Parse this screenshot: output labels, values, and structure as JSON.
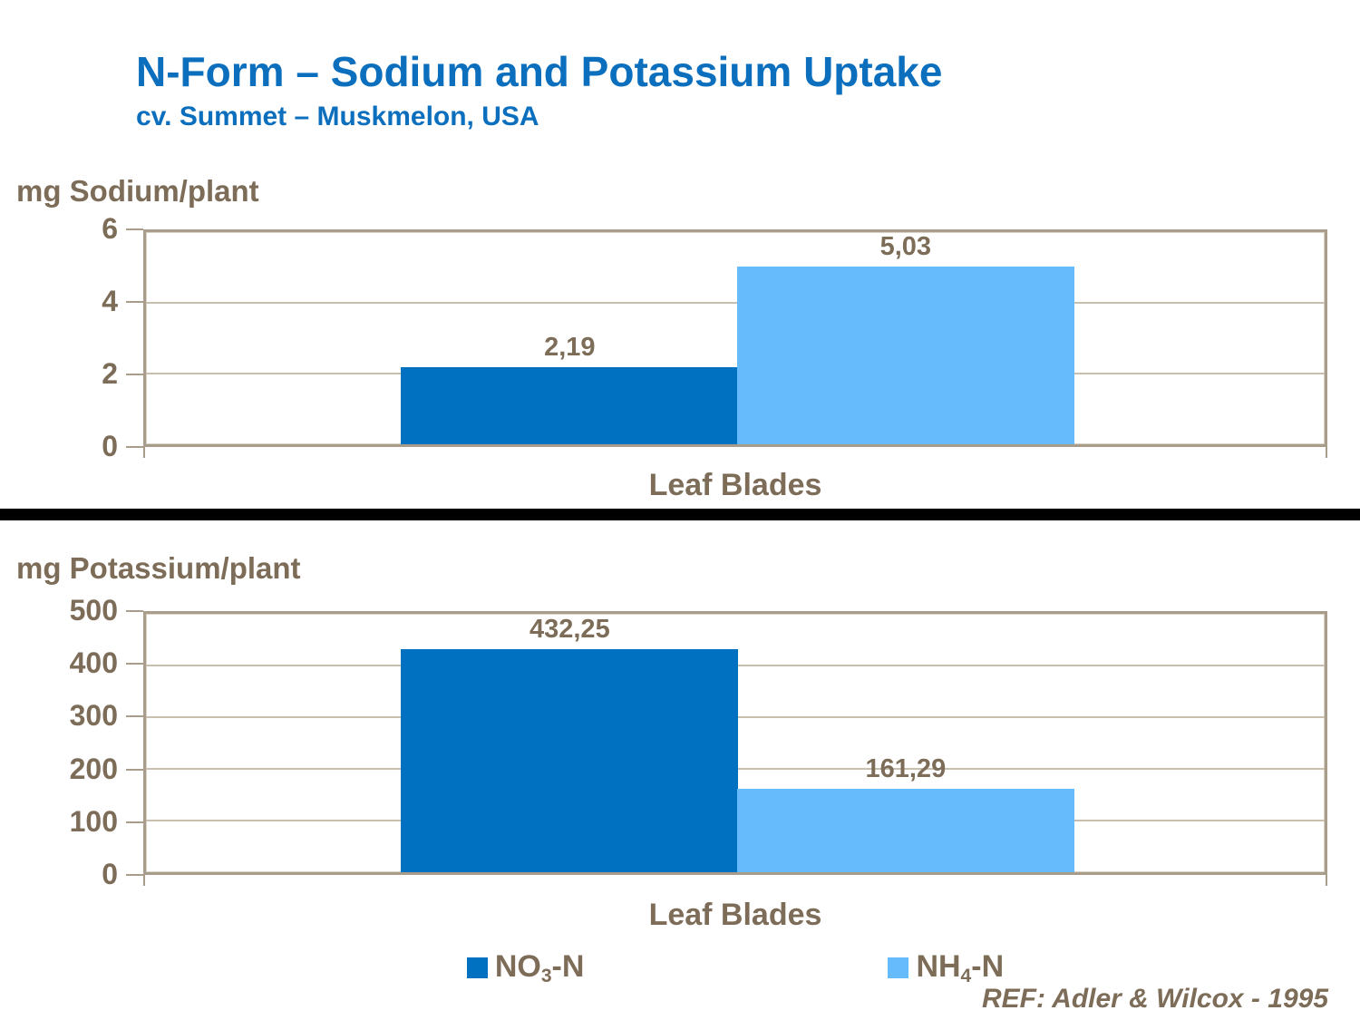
{
  "page": {
    "title": "N-Form – Sodium and Potassium Uptake",
    "subtitle": "cv. Summet – Muskmelon, USA",
    "reference": "REF: Adler & Wilcox - 1995"
  },
  "colors": {
    "title_blue": "#0B6FBE",
    "text_brown": "#7D6D58",
    "no3_bar_blue": "#0070C0",
    "nh4_bar_blue": "#66BBFC",
    "plot_border_tan": "#A89C8A",
    "gridline_tan": "#C9BFAF",
    "divider_black": "#000000"
  },
  "legend": {
    "items": [
      {
        "label_main": "NO",
        "label_sub": "3",
        "label_suffix": "-N",
        "color": "#0070C0"
      },
      {
        "label_main": "NH",
        "label_sub": "4",
        "label_suffix": "-N",
        "color": "#66BBFC"
      }
    ]
  },
  "chart_data": [
    {
      "type": "bar",
      "axis_title": "mg Sodium/plant",
      "categories": [
        "Leaf Blades"
      ],
      "series": [
        {
          "name": "NO3-N",
          "values": [
            2.19
          ],
          "labels": [
            "2,19"
          ],
          "color": "#0070C0"
        },
        {
          "name": "NH4-N",
          "values": [
            5.03
          ],
          "labels": [
            "5,03"
          ],
          "color": "#66BBFC"
        }
      ],
      "xlabel": "Leaf Blades",
      "ylabel": "mg Sodium/plant",
      "ylim": [
        0,
        6
      ],
      "yticks": [
        0,
        2,
        4,
        6
      ],
      "grid": true,
      "legend_position": "none"
    },
    {
      "type": "bar",
      "axis_title": "mg Potassium/plant",
      "categories": [
        "Leaf Blades"
      ],
      "series": [
        {
          "name": "NO3-N",
          "values": [
            432.25
          ],
          "labels": [
            "432,25"
          ],
          "color": "#0070C0"
        },
        {
          "name": "NH4-N",
          "values": [
            161.29
          ],
          "labels": [
            "161,29"
          ],
          "color": "#66BBFC"
        }
      ],
      "xlabel": "Leaf Blades",
      "ylabel": "mg Potassium/plant",
      "ylim": [
        0,
        500
      ],
      "yticks": [
        0,
        100,
        200,
        300,
        400,
        500
      ],
      "grid": true,
      "legend_position": "bottom"
    }
  ]
}
